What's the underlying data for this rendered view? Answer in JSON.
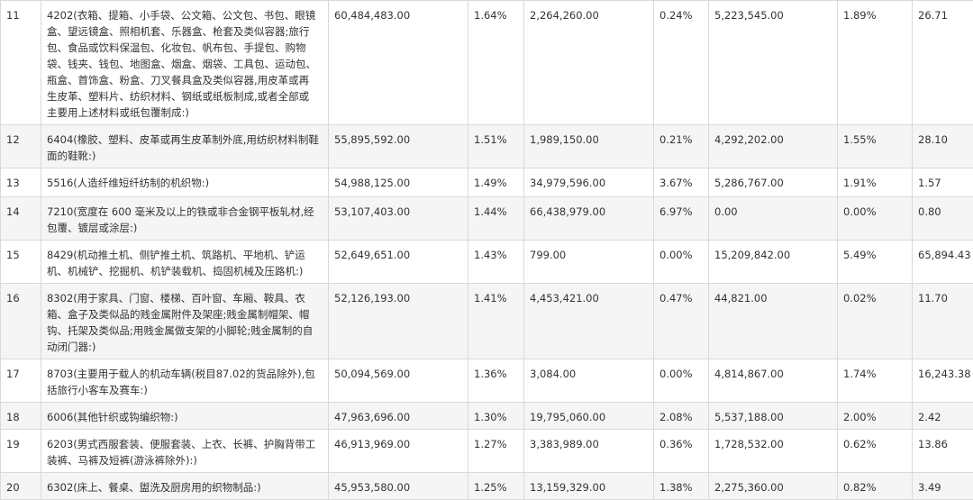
{
  "rows": [
    {
      "rank": "11",
      "desc": "4202(衣箱、提箱、小手袋、公文箱、公文包、书包、眼镜盒、望远镜盒、照相机套、乐器盒、枪套及类似容器;旅行包、食品或饮料保温包、化妆包、帆布包、手提包、购物袋、钱夹、钱包、地图盒、烟盒、烟袋、工具包、运动包、瓶盒、首饰盒、粉盒、刀叉餐具盒及类似容器,用皮革或再生皮革、塑料片、纺织材料、钢纸或纸板制成,或者全部或主要用上述材料或纸包覆制成:)",
      "v1": "60,484,483.00",
      "p1": "1.64%",
      "v2": "2,264,260.00",
      "p2": "0.24%",
      "v3": "5,223,545.00",
      "p3": "1.89%",
      "ratio": "26.71"
    },
    {
      "rank": "12",
      "desc": "6404(橡胶、塑料、皮革或再生皮革制外底,用纺织材料制鞋面的鞋靴:)",
      "v1": "55,895,592.00",
      "p1": "1.51%",
      "v2": "1,989,150.00",
      "p2": "0.21%",
      "v3": "4,292,202.00",
      "p3": "1.55%",
      "ratio": "28.10"
    },
    {
      "rank": "13",
      "desc": "5516(人造纤维短纤纺制的机织物:)",
      "v1": "54,988,125.00",
      "p1": "1.49%",
      "v2": "34,979,596.00",
      "p2": "3.67%",
      "v3": "5,286,767.00",
      "p3": "1.91%",
      "ratio": "1.57"
    },
    {
      "rank": "14",
      "desc": "7210(宽度在 600 毫米及以上的铁或非合金钢平板轧材,经包覆、镀层或涂层:)",
      "v1": "53,107,403.00",
      "p1": "1.44%",
      "v2": "66,438,979.00",
      "p2": "6.97%",
      "v3": "0.00",
      "p3": "0.00%",
      "ratio": "0.80"
    },
    {
      "rank": "15",
      "desc": "8429(机动推土机、侧铲推土机、筑路机、平地机、铲运机、机械铲、挖掘机、机铲装载机、捣固机械及压路机:)",
      "v1": "52,649,651.00",
      "p1": "1.43%",
      "v2": "799.00",
      "p2": "0.00%",
      "v3": "15,209,842.00",
      "p3": "5.49%",
      "ratio": "65,894.43"
    },
    {
      "rank": "16",
      "desc": "8302(用于家具、门窗、楼梯、百叶窗、车厢、鞍具、衣箱、盒子及类似品的贱金属附件及架座;贱金属制帽架、帽钩、托架及类似品;用贱金属做支架的小脚轮;贱金属制的自动闭门器:)",
      "v1": "52,126,193.00",
      "p1": "1.41%",
      "v2": "4,453,421.00",
      "p2": "0.47%",
      "v3": "44,821.00",
      "p3": "0.02%",
      "ratio": "11.70"
    },
    {
      "rank": "17",
      "desc": "8703(主要用于载人的机动车辆(税目87.02的货品除外),包括旅行小客车及赛车:)",
      "v1": "50,094,569.00",
      "p1": "1.36%",
      "v2": "3,084.00",
      "p2": "0.00%",
      "v3": "4,814,867.00",
      "p3": "1.74%",
      "ratio": "16,243.38"
    },
    {
      "rank": "18",
      "desc": "6006(其他针织或钩编织物:)",
      "v1": "47,963,696.00",
      "p1": "1.30%",
      "v2": "19,795,060.00",
      "p2": "2.08%",
      "v3": "5,537,188.00",
      "p3": "2.00%",
      "ratio": "2.42"
    },
    {
      "rank": "19",
      "desc": "6203(男式西服套装、便服套装、上衣、长裤、护胸背带工装裤、马裤及短裤(游泳裤除外):)",
      "v1": "46,913,969.00",
      "p1": "1.27%",
      "v2": "3,383,989.00",
      "p2": "0.36%",
      "v3": "1,728,532.00",
      "p3": "0.62%",
      "ratio": "13.86"
    },
    {
      "rank": "20",
      "desc": "6302(床上、餐桌、盥洗及厨房用的织物制品:)",
      "v1": "45,953,580.00",
      "p1": "1.25%",
      "v2": "13,159,329.00",
      "p2": "1.38%",
      "v3": "2,275,360.00",
      "p3": "0.82%",
      "ratio": "3.49"
    }
  ]
}
